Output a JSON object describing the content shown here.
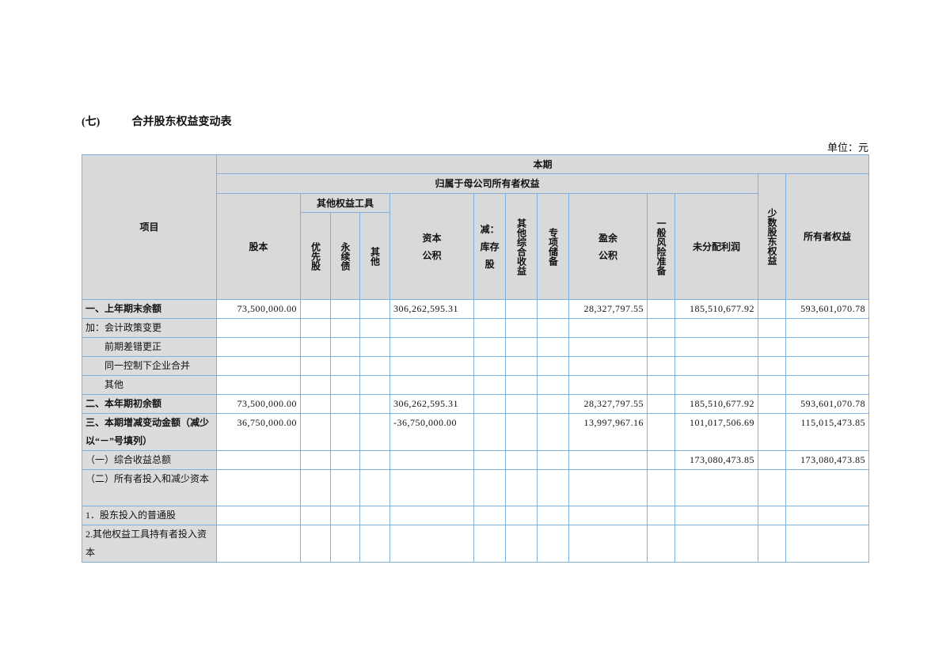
{
  "section": {
    "number": "(七)",
    "title": "合并股东权益变动表"
  },
  "unit": "单位：元",
  "headers": {
    "item": "项目",
    "period": "本期",
    "parent_equity": "归属于母公司所有者权益",
    "share_capital": "股本",
    "other_equity_instruments": "其他权益工具",
    "preferred": "优先股",
    "perpetual": "永续债",
    "other": "其他",
    "capital_reserve": "资本公积",
    "treasury": "减：库存股",
    "oci": "其他综合收益",
    "special_reserve": "专项储备",
    "surplus_reserve": "盈余公积",
    "general_risk": "一般风险准备",
    "retained": "未分配利润",
    "minority": "少数股东权益",
    "total": "所有者权益"
  },
  "rows": [
    {
      "item": "一、上年期末余额",
      "bold": true,
      "values": [
        "73,500,000.00",
        "",
        "",
        "",
        "306,262,595.31",
        "",
        "",
        "",
        "28,327,797.55",
        "",
        "185,510,677.92",
        "",
        "593,601,070.78"
      ]
    },
    {
      "item": "加：会计政策变更",
      "values": [
        "",
        "",
        "",
        "",
        "",
        "",
        "",
        "",
        "",
        "",
        "",
        "",
        ""
      ]
    },
    {
      "item": "　　前期差错更正",
      "values": [
        "",
        "",
        "",
        "",
        "",
        "",
        "",
        "",
        "",
        "",
        "",
        "",
        ""
      ]
    },
    {
      "item": "　　同一控制下企业合并",
      "values": [
        "",
        "",
        "",
        "",
        "",
        "",
        "",
        "",
        "",
        "",
        "",
        "",
        ""
      ]
    },
    {
      "item": "　　其他",
      "values": [
        "",
        "",
        "",
        "",
        "",
        "",
        "",
        "",
        "",
        "",
        "",
        "",
        ""
      ]
    },
    {
      "item": "二、本年期初余额",
      "bold": true,
      "values": [
        "73,500,000.00",
        "",
        "",
        "",
        "306,262,595.31",
        "",
        "",
        "",
        "28,327,797.55",
        "",
        "185,510,677.92",
        "",
        "593,601,070.78"
      ]
    },
    {
      "item": "三、本期增减变动金额（减少以“－”号填列）",
      "bold": true,
      "tall": true,
      "values": [
        "36,750,000.00",
        "",
        "",
        "",
        "-36,750,000.00",
        "",
        "",
        "",
        "13,997,967.16",
        "",
        "101,017,506.69",
        "",
        "115,015,473.85"
      ]
    },
    {
      "item": "（一）综合收益总额",
      "values": [
        "",
        "",
        "",
        "",
        "",
        "",
        "",
        "",
        "",
        "",
        "173,080,473.85",
        "",
        "173,080,473.85"
      ]
    },
    {
      "item": "（二）所有者投入和减少资本",
      "tall": true,
      "values": [
        "",
        "",
        "",
        "",
        "",
        "",
        "",
        "",
        "",
        "",
        "",
        "",
        ""
      ]
    },
    {
      "item": "1．股东投入的普通股",
      "values": [
        "",
        "",
        "",
        "",
        "",
        "",
        "",
        "",
        "",
        "",
        "",
        "",
        ""
      ]
    },
    {
      "item": "2.其他权益工具持有者投入资本",
      "tall": true,
      "values": [
        "",
        "",
        "",
        "",
        "",
        "",
        "",
        "",
        "",
        "",
        "",
        "",
        ""
      ]
    }
  ]
}
